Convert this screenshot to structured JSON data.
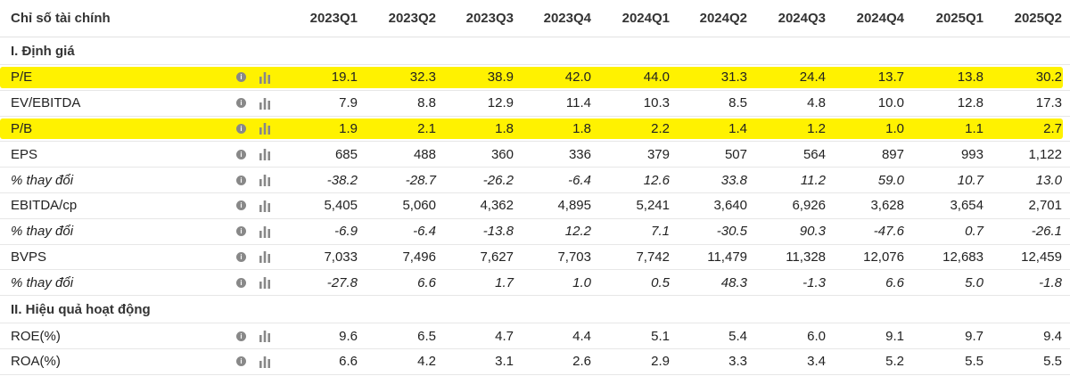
{
  "header": {
    "title": "Chỉ số tài chính",
    "periods": [
      "2023Q1",
      "2023Q2",
      "2023Q3",
      "2023Q4",
      "2024Q1",
      "2024Q2",
      "2024Q3",
      "2024Q4",
      "2025Q1",
      "2025Q2"
    ]
  },
  "sections": [
    {
      "title": "I. Định giá"
    },
    {
      "title": "II. Hiệu quả hoạt động"
    }
  ],
  "rows": [
    {
      "label": "P/E",
      "highlight": true,
      "values": [
        "19.1",
        "32.3",
        "38.9",
        "42.0",
        "44.0",
        "31.3",
        "24.4",
        "13.7",
        "13.8",
        "30.2"
      ]
    },
    {
      "label": "EV/EBITDA",
      "values": [
        "7.9",
        "8.8",
        "12.9",
        "11.4",
        "10.3",
        "8.5",
        "4.8",
        "10.0",
        "12.8",
        "17.3"
      ]
    },
    {
      "label": "P/B",
      "highlight": true,
      "values": [
        "1.9",
        "2.1",
        "1.8",
        "1.8",
        "2.2",
        "1.4",
        "1.2",
        "1.0",
        "1.1",
        "2.7"
      ]
    },
    {
      "label": "EPS",
      "values": [
        "685",
        "488",
        "360",
        "336",
        "379",
        "507",
        "564",
        "897",
        "993",
        "1,122"
      ]
    },
    {
      "label": "% thay đổi",
      "italic": true,
      "values": [
        "-38.2",
        "-28.7",
        "-26.2",
        "-6.4",
        "12.6",
        "33.8",
        "11.2",
        "59.0",
        "10.7",
        "13.0"
      ]
    },
    {
      "label": "EBITDA/cp",
      "values": [
        "5,405",
        "5,060",
        "4,362",
        "4,895",
        "5,241",
        "3,640",
        "6,926",
        "3,628",
        "3,654",
        "2,701"
      ]
    },
    {
      "label": "% thay đổi",
      "italic": true,
      "values": [
        "-6.9",
        "-6.4",
        "-13.8",
        "12.2",
        "7.1",
        "-30.5",
        "90.3",
        "-47.6",
        "0.7",
        "-26.1"
      ]
    },
    {
      "label": "BVPS",
      "values": [
        "7,033",
        "7,496",
        "7,627",
        "7,703",
        "7,742",
        "11,479",
        "11,328",
        "12,076",
        "12,683",
        "12,459"
      ]
    },
    {
      "label": "% thay đổi",
      "italic": true,
      "values": [
        "-27.8",
        "6.6",
        "1.7",
        "1.0",
        "0.5",
        "48.3",
        "-1.3",
        "6.6",
        "5.0",
        "-1.8"
      ]
    },
    {
      "label": "ROE(%)",
      "values": [
        "9.6",
        "6.5",
        "4.7",
        "4.4",
        "5.1",
        "5.4",
        "6.0",
        "9.1",
        "9.7",
        "9.4"
      ]
    },
    {
      "label": "ROA(%)",
      "values": [
        "6.6",
        "4.2",
        "3.1",
        "2.6",
        "2.9",
        "3.3",
        "3.4",
        "5.2",
        "5.5",
        "5.5"
      ]
    }
  ],
  "icons": {
    "info": "info-icon",
    "chart": "bar-chart-icon"
  },
  "colors": {
    "highlight": "#fff200",
    "icon": "#888888"
  }
}
